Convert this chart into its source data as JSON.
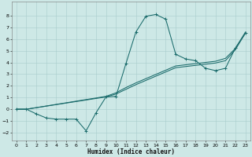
{
  "xlabel": "Humidex (Indice chaleur)",
  "xlim": [
    -0.5,
    23.5
  ],
  "ylim": [
    -2.7,
    9.2
  ],
  "xticks": [
    0,
    1,
    2,
    3,
    4,
    5,
    6,
    7,
    8,
    9,
    10,
    11,
    12,
    13,
    14,
    15,
    16,
    17,
    18,
    19,
    20,
    21,
    22,
    23
  ],
  "yticks": [
    -2,
    -1,
    0,
    1,
    2,
    3,
    4,
    5,
    6,
    7,
    8
  ],
  "bg_color": "#cde8e6",
  "grid_color": "#a8cccc",
  "line_color": "#1a6b6b",
  "line1_x": [
    0,
    1,
    2,
    3,
    4,
    5,
    6,
    7,
    8,
    9,
    10,
    11,
    12,
    13,
    14,
    15,
    16,
    17,
    18,
    19,
    20,
    21,
    22,
    23
  ],
  "line1_y": [
    0.0,
    0.0,
    -0.4,
    -0.75,
    -0.85,
    -0.85,
    -0.85,
    -1.85,
    -0.3,
    1.05,
    1.1,
    3.9,
    6.6,
    7.95,
    8.1,
    7.7,
    4.7,
    4.3,
    4.15,
    3.5,
    3.3,
    3.5,
    5.25,
    6.5
  ],
  "line2_x": [
    0,
    1,
    9,
    10,
    11,
    12,
    16,
    17,
    18,
    19,
    20,
    21,
    22,
    23
  ],
  "line2_y": [
    0.0,
    0.0,
    1.05,
    1.3,
    1.7,
    2.1,
    3.55,
    3.65,
    3.75,
    3.85,
    3.95,
    4.15,
    5.1,
    6.5
  ],
  "line3_x": [
    0,
    1,
    9,
    10,
    11,
    12,
    16,
    17,
    18,
    19,
    20,
    21,
    22,
    23
  ],
  "line3_y": [
    0.0,
    0.0,
    1.1,
    1.4,
    1.85,
    2.25,
    3.7,
    3.8,
    3.9,
    4.0,
    4.1,
    4.35,
    5.2,
    6.6
  ]
}
